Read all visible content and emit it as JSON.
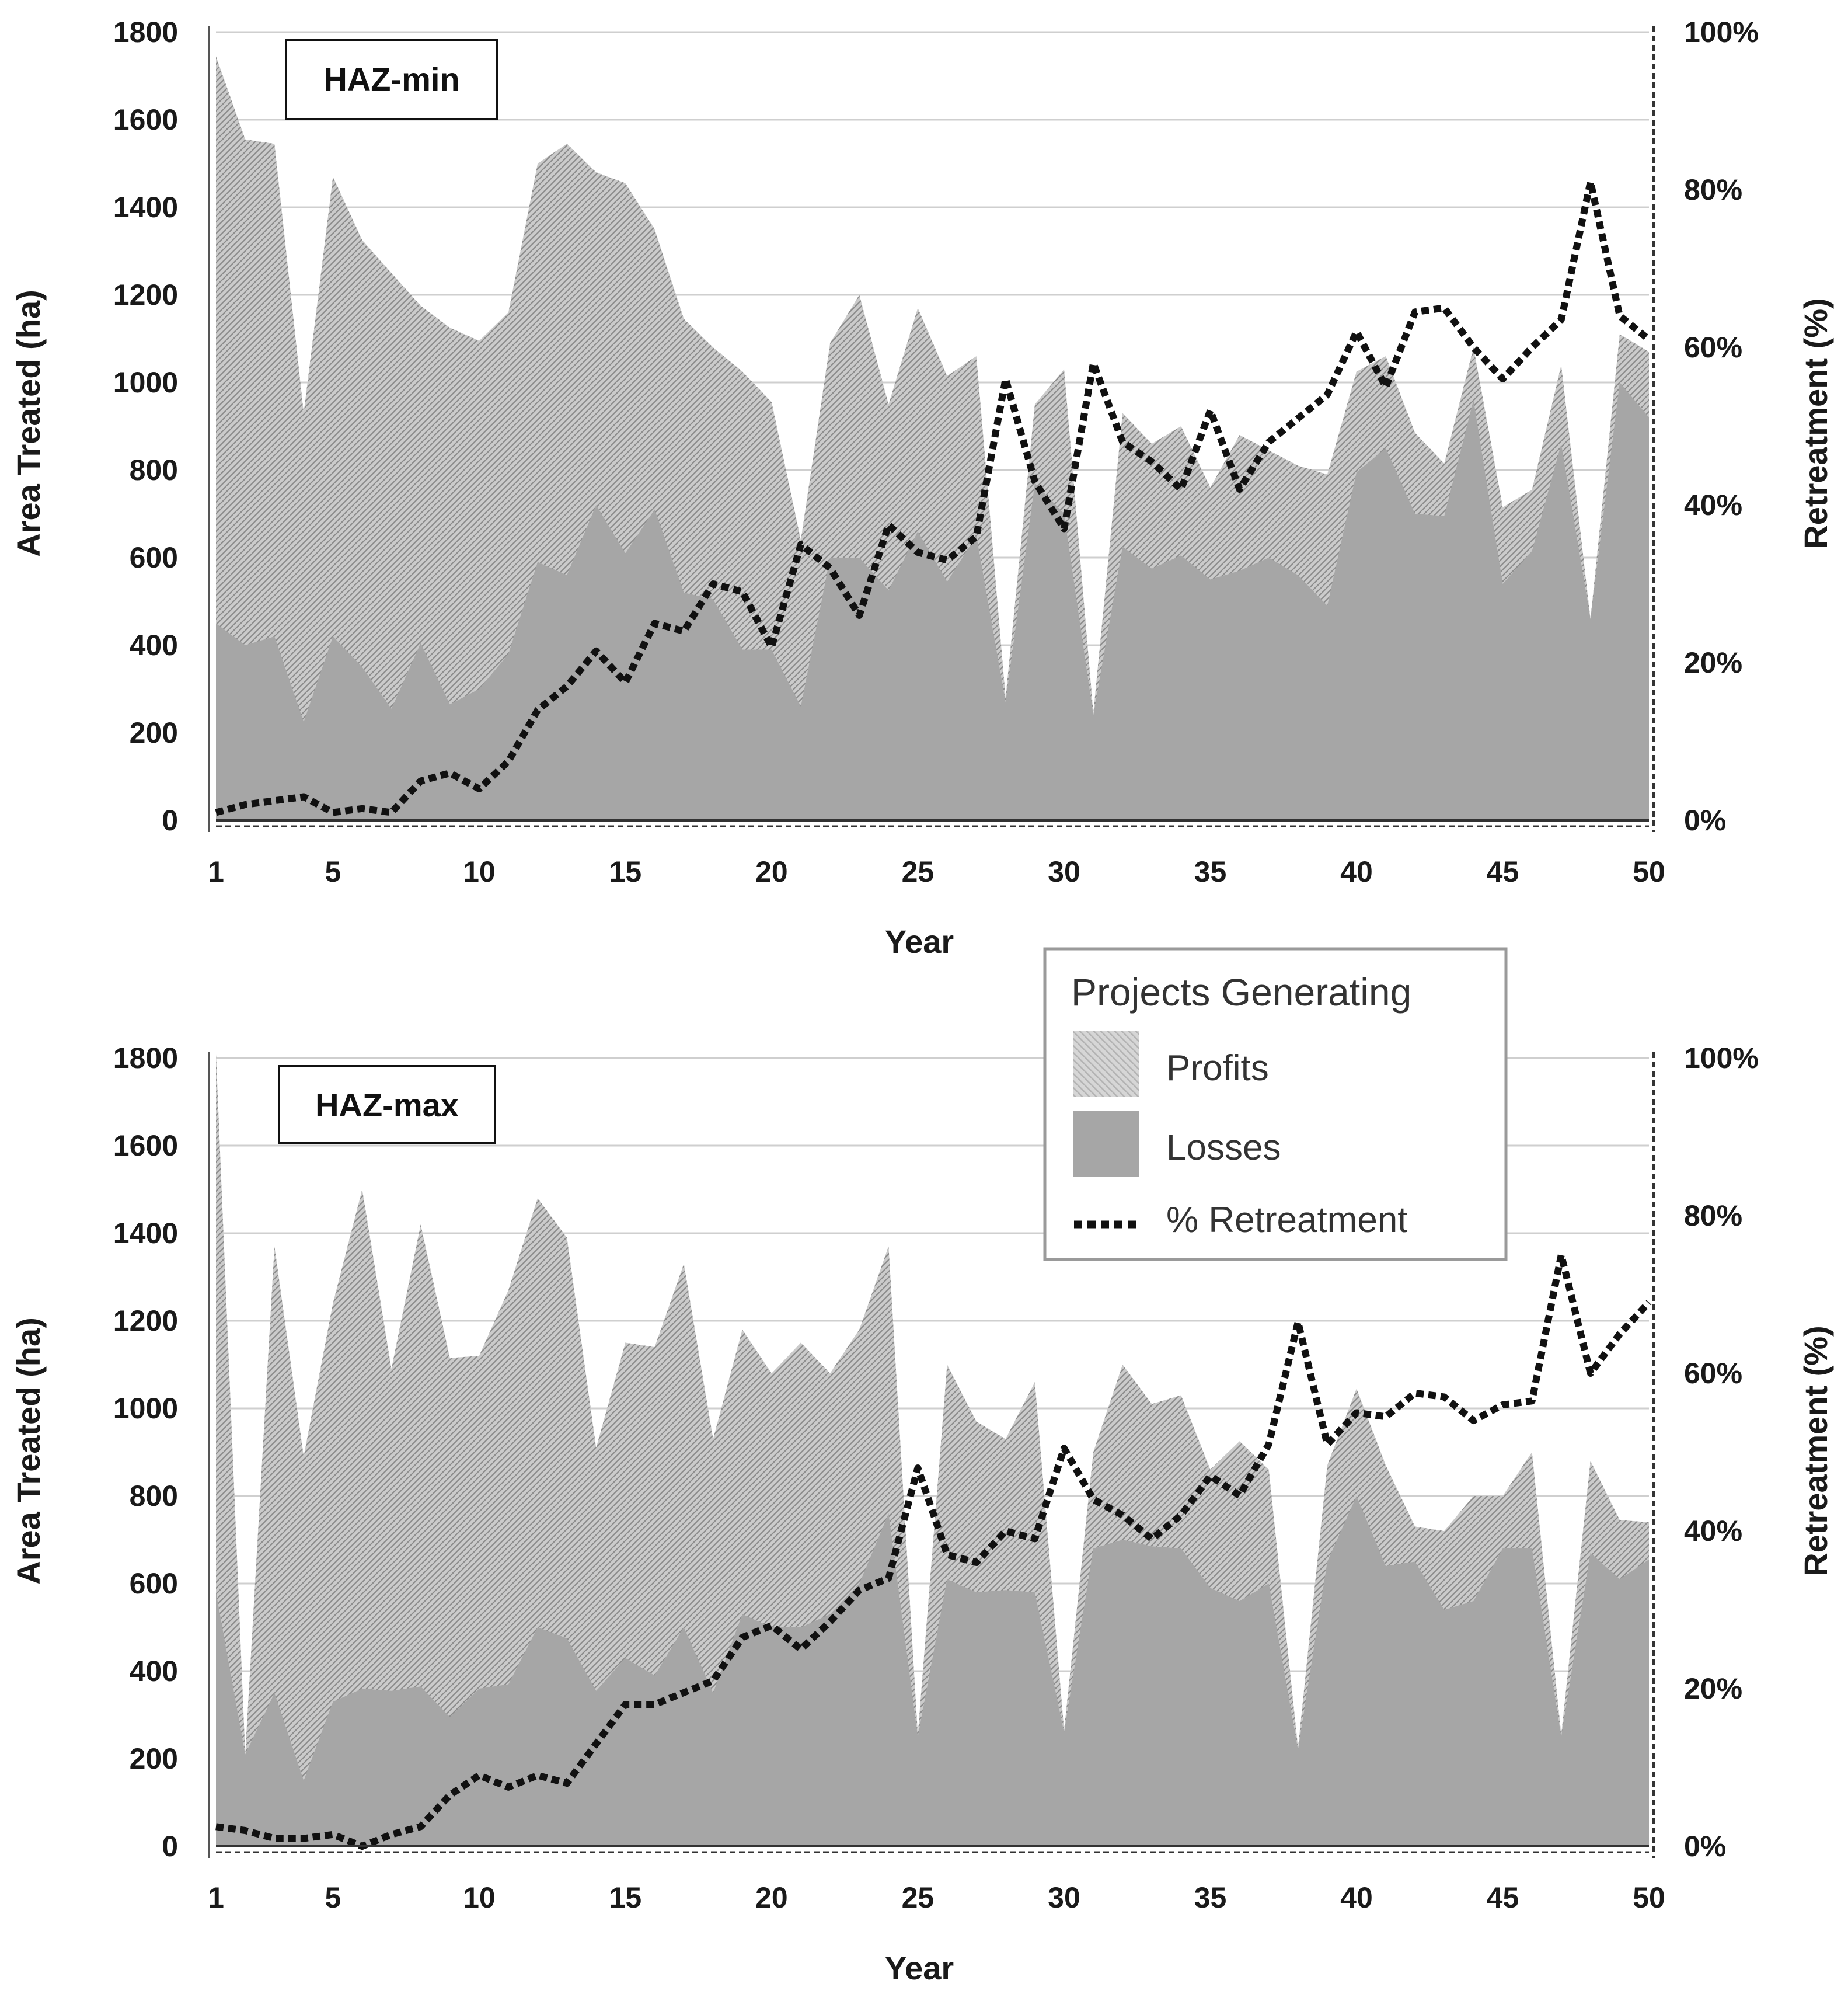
{
  "chart_data": [
    {
      "type": "area",
      "label": "HAZ-min",
      "x": [
        1,
        2,
        3,
        4,
        5,
        6,
        7,
        8,
        9,
        10,
        11,
        12,
        13,
        14,
        15,
        16,
        17,
        18,
        19,
        20,
        21,
        22,
        23,
        24,
        25,
        26,
        27,
        28,
        29,
        30,
        31,
        32,
        33,
        34,
        35,
        36,
        37,
        38,
        39,
        40,
        41,
        42,
        43,
        44,
        45,
        46,
        47,
        48,
        49,
        50
      ],
      "series": [
        {
          "name": "Profits",
          "values": [
            1745,
            1555,
            1545,
            930,
            1470,
            1325,
            1250,
            1175,
            1125,
            1095,
            1160,
            1500,
            1545,
            1480,
            1455,
            1350,
            1145,
            1080,
            1025,
            955,
            640,
            1090,
            1200,
            950,
            1170,
            1015,
            1060,
            280,
            950,
            1030,
            245,
            930,
            860,
            900,
            760,
            880,
            845,
            810,
            790,
            1025,
            1060,
            885,
            815,
            1080,
            715,
            755,
            1040,
            460,
            1110,
            1070
          ]
        },
        {
          "name": "Losses",
          "values": [
            450,
            400,
            420,
            225,
            420,
            350,
            255,
            405,
            265,
            300,
            380,
            590,
            560,
            720,
            610,
            710,
            520,
            505,
            390,
            390,
            260,
            600,
            600,
            525,
            660,
            545,
            650,
            270,
            770,
            700,
            240,
            625,
            575,
            605,
            550,
            570,
            600,
            560,
            490,
            795,
            850,
            700,
            695,
            960,
            540,
            615,
            860,
            460,
            1000,
            920
          ]
        },
        {
          "name": "% Retreatment",
          "axis": "right",
          "values": [
            1,
            2,
            2.5,
            3,
            1,
            1.5,
            1,
            5,
            6,
            4,
            7.5,
            14,
            17,
            21.5,
            17.5,
            25,
            24,
            30,
            29,
            22,
            35,
            32,
            26,
            37.5,
            34,
            33,
            36,
            56,
            43,
            37,
            58,
            48,
            45.5,
            42,
            52,
            42,
            48,
            51,
            54,
            62,
            55,
            64.5,
            65,
            60,
            56,
            60,
            63.5,
            81,
            64,
            61
          ]
        }
      ],
      "xlabel": "Year",
      "ylabel": "Area Treated (ha)",
      "ylabel_right": "Retreatment (%)",
      "xticks": [
        "1",
        "5",
        "10",
        "15",
        "20",
        "25",
        "30",
        "35",
        "40",
        "45",
        "50"
      ],
      "yticks": [
        "0",
        "200",
        "400",
        "600",
        "800",
        "1000",
        "1200",
        "1400",
        "1600",
        "1800"
      ],
      "yticks_right": [
        "0%",
        "20%",
        "40%",
        "60%",
        "80%",
        "100%"
      ],
      "ylim": [
        0,
        1800
      ],
      "ylim_right": [
        0,
        100
      ],
      "grid": true
    },
    {
      "type": "area",
      "label": "HAZ-max",
      "x": [
        1,
        2,
        3,
        4,
        5,
        6,
        7,
        8,
        9,
        10,
        11,
        12,
        13,
        14,
        15,
        16,
        17,
        18,
        19,
        20,
        21,
        22,
        23,
        24,
        25,
        26,
        27,
        28,
        29,
        30,
        31,
        32,
        33,
        34,
        35,
        36,
        37,
        38,
        39,
        40,
        41,
        42,
        43,
        44,
        45,
        46,
        47,
        48,
        49,
        50
      ],
      "series": [
        {
          "name": "Profits",
          "values": [
            1810,
            210,
            1370,
            890,
            1240,
            1500,
            1090,
            1420,
            1115,
            1120,
            1270,
            1480,
            1390,
            910,
            1150,
            1140,
            1330,
            930,
            1180,
            1080,
            1150,
            1080,
            1180,
            1370,
            255,
            1100,
            970,
            930,
            1060,
            265,
            900,
            1100,
            1010,
            1030,
            860,
            925,
            860,
            225,
            870,
            1045,
            870,
            730,
            720,
            800,
            800,
            900,
            255,
            880,
            745,
            740
          ]
        },
        {
          "name": "Losses",
          "values": [
            580,
            210,
            350,
            150,
            330,
            360,
            355,
            365,
            295,
            360,
            370,
            500,
            475,
            355,
            430,
            390,
            500,
            350,
            530,
            500,
            500,
            530,
            600,
            760,
            250,
            610,
            580,
            585,
            580,
            260,
            680,
            700,
            685,
            680,
            590,
            560,
            600,
            220,
            650,
            800,
            640,
            650,
            540,
            560,
            680,
            680,
            250,
            670,
            610,
            655
          ]
        },
        {
          "name": "% Retreatment",
          "axis": "right",
          "values": [
            2.5,
            2,
            1,
            1,
            1.5,
            0,
            1.5,
            2.5,
            6.5,
            9,
            7.5,
            9,
            8,
            13,
            18,
            18,
            19.5,
            21,
            26.5,
            28,
            25,
            28.5,
            32.5,
            34,
            48,
            37,
            36,
            40,
            39,
            50.5,
            44,
            42,
            39,
            42,
            47,
            44.5,
            51,
            66.5,
            51,
            55,
            54.5,
            57.5,
            57,
            54,
            56,
            56.5,
            75,
            60,
            65,
            69
          ]
        }
      ],
      "xlabel": "Year",
      "ylabel": "Area Treated (ha)",
      "ylabel_right": "Retreatment (%)",
      "xticks": [
        "1",
        "5",
        "10",
        "15",
        "20",
        "25",
        "30",
        "35",
        "40",
        "45",
        "50"
      ],
      "yticks": [
        "0",
        "200",
        "400",
        "600",
        "800",
        "1000",
        "1200",
        "1400",
        "1600",
        "1800"
      ],
      "yticks_right": [
        "0%",
        "20%",
        "40%",
        "60%",
        "80%",
        "100%"
      ],
      "ylim": [
        0,
        1800
      ],
      "ylim_right": [
        0,
        100
      ],
      "grid": true
    }
  ],
  "legend": {
    "title": "Projects Generating",
    "items": [
      {
        "label": "Profits",
        "kind": "hatched"
      },
      {
        "label": "Losses",
        "kind": "solid"
      },
      {
        "label": "% Retreatment",
        "kind": "dotted-line"
      }
    ],
    "placement": "right, between panels"
  },
  "colors": {
    "losses": "#a6a6a6",
    "profits_base": "#c7c7c7",
    "profits_hatch": "#8a8a8a",
    "retreatment_line": "#111111",
    "grid": "#cfcfcf",
    "axis_text": "#1a1a1a"
  }
}
